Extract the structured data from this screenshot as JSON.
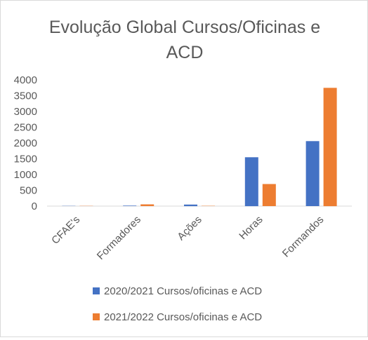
{
  "chart_data": {
    "type": "bar",
    "title_lines": [
      "Evolução Global Cursos/Oficinas e",
      "ACD"
    ],
    "categories": [
      "CFAE's",
      "Formadores",
      "Ações",
      "Horas",
      "Formandos"
    ],
    "series": [
      {
        "name": "2020/2021 Cursos/oficinas e ACD",
        "color": "#4472c4",
        "values": [
          7,
          15,
          50,
          1550,
          2060
        ]
      },
      {
        "name": "2021/2022 Cursos/oficinas e ACD",
        "color": "#ed7d31",
        "values": [
          7,
          55,
          10,
          700,
          3750
        ]
      }
    ],
    "ylim": [
      0,
      4000
    ],
    "yticks": [
      0,
      500,
      1000,
      1500,
      2000,
      2500,
      3000,
      3500,
      4000
    ],
    "grid": false,
    "legend_position": "bottom"
  }
}
